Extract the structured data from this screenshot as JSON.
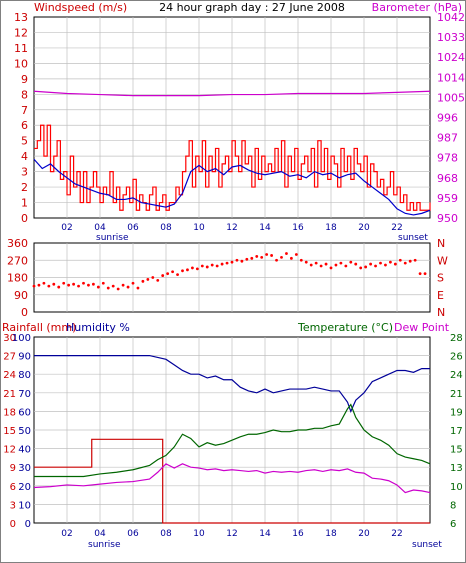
{
  "title": "24 hour graph day : 27 June 2008",
  "colors": {
    "frame": "#000000",
    "grid": "#c0c0c0",
    "wind": "#ff0000",
    "wind_avg": "#0000cc",
    "barometer": "#cc00cc",
    "direction": "#ff0000",
    "rain": "#cc0000",
    "humidity": "#000099",
    "temperature": "#006600",
    "dew_point": "#cc00cc",
    "left_axis": "#cc0000",
    "humidity_axis": "#000099",
    "right_axis_temp": "#006600"
  },
  "hour_ticks": [
    "02",
    "04",
    "06",
    "08",
    "10",
    "12",
    "14",
    "16",
    "18",
    "20",
    "22"
  ],
  "sunrise_label": "sunrise",
  "sunset_label": "sunset",
  "chart_data": [
    {
      "type": "line",
      "panel": "wind-barometer",
      "title": "24 hour graph day : 27 June 2008",
      "xlabel": "",
      "x_range_hours": [
        0,
        24
      ],
      "left_axis": {
        "label": "Windspeed (m/s)",
        "range": [
          0,
          13
        ],
        "ticks": [
          "0",
          "1",
          "2",
          "3",
          "4",
          "5",
          "6",
          "7",
          "8",
          "9",
          "10",
          "11",
          "12",
          "13"
        ]
      },
      "right_axis": {
        "label": "Barometer (hPa)",
        "range": [
          950,
          1042
        ],
        "ticks": [
          "950",
          "959",
          "968",
          "978",
          "987",
          "996",
          "1005",
          "1014",
          "1024",
          "1033",
          "1042"
        ]
      },
      "series": [
        {
          "name": "Windspeed (m/s)",
          "axis": "left",
          "x": [
            0.0,
            0.2,
            0.4,
            0.6,
            0.8,
            1.0,
            1.2,
            1.4,
            1.6,
            1.8,
            2.0,
            2.2,
            2.4,
            2.6,
            2.8,
            3.0,
            3.2,
            3.4,
            3.6,
            3.8,
            4.0,
            4.2,
            4.4,
            4.6,
            4.8,
            5.0,
            5.2,
            5.4,
            5.6,
            5.8,
            6.0,
            6.2,
            6.4,
            6.6,
            6.8,
            7.0,
            7.2,
            7.4,
            7.6,
            7.8,
            8.0,
            8.2,
            8.4,
            8.6,
            8.8,
            9.0,
            9.2,
            9.4,
            9.6,
            9.8,
            10.0,
            10.2,
            10.4,
            10.6,
            10.8,
            11.0,
            11.2,
            11.4,
            11.6,
            11.8,
            12.0,
            12.2,
            12.4,
            12.6,
            12.8,
            13.0,
            13.2,
            13.4,
            13.6,
            13.8,
            14.0,
            14.2,
            14.4,
            14.6,
            14.8,
            15.0,
            15.2,
            15.4,
            15.6,
            15.8,
            16.0,
            16.2,
            16.4,
            16.6,
            16.8,
            17.0,
            17.2,
            17.4,
            17.6,
            17.8,
            18.0,
            18.2,
            18.4,
            18.6,
            18.8,
            19.0,
            19.2,
            19.4,
            19.6,
            19.8,
            20.0,
            20.2,
            20.4,
            20.6,
            20.8,
            21.0,
            21.2,
            21.4,
            21.6,
            21.8,
            22.0,
            22.2,
            22.4,
            22.6,
            22.8,
            23.0,
            23.2,
            23.4,
            23.6,
            23.8,
            24.0
          ],
          "values": [
            4.5,
            5.0,
            6.0,
            4.0,
            6.0,
            3.0,
            4.0,
            5.0,
            2.5,
            3.0,
            1.5,
            4.0,
            2.0,
            3.0,
            1.0,
            3.0,
            1.0,
            2.0,
            3.0,
            2.0,
            1.0,
            2.0,
            1.5,
            3.0,
            1.0,
            2.0,
            0.5,
            1.5,
            2.0,
            1.0,
            2.5,
            0.5,
            1.5,
            1.0,
            0.5,
            1.5,
            2.0,
            0.5,
            1.0,
            1.5,
            0.5,
            1.0,
            1.0,
            2.0,
            1.5,
            3.0,
            4.0,
            5.0,
            2.0,
            4.0,
            3.0,
            5.0,
            2.0,
            4.0,
            3.0,
            4.5,
            2.0,
            3.5,
            4.0,
            3.0,
            5.0,
            4.0,
            3.0,
            5.0,
            3.5,
            4.0,
            2.0,
            4.5,
            2.5,
            4.0,
            3.0,
            3.5,
            3.0,
            4.5,
            3.0,
            5.0,
            2.0,
            4.0,
            3.0,
            4.5,
            2.5,
            3.5,
            4.0,
            3.0,
            4.5,
            2.0,
            5.0,
            3.0,
            4.5,
            2.5,
            4.0,
            3.5,
            2.0,
            4.5,
            3.0,
            4.0,
            2.5,
            4.5,
            3.5,
            3.0,
            4.0,
            2.0,
            3.5,
            3.0,
            2.0,
            2.5,
            1.5,
            2.0,
            3.0,
            1.5,
            2.0,
            1.0,
            1.5,
            0.5,
            1.0,
            0.5,
            1.0,
            0.5,
            0.5,
            0.5,
            1.0
          ]
        },
        {
          "name": "Average windspeed",
          "axis": "left",
          "x": [
            0,
            0.5,
            1,
            1.5,
            2,
            2.5,
            3,
            3.5,
            4,
            4.5,
            5,
            5.5,
            6,
            6.5,
            7,
            7.5,
            8,
            8.5,
            9,
            9.5,
            10,
            10.5,
            11,
            11.5,
            12,
            12.5,
            13,
            13.5,
            14,
            14.5,
            15,
            15.5,
            16,
            16.5,
            17,
            17.5,
            18,
            18.5,
            19,
            19.5,
            20,
            20.5,
            21,
            21.5,
            22,
            22.5,
            23,
            23.5,
            24
          ],
          "values": [
            3.8,
            3.2,
            3.5,
            3.0,
            2.6,
            2.2,
            2.0,
            1.8,
            1.6,
            1.5,
            1.2,
            1.2,
            1.3,
            1.0,
            0.9,
            0.8,
            0.7,
            0.9,
            1.6,
            3.0,
            3.4,
            3.0,
            3.2,
            2.8,
            3.3,
            3.4,
            3.1,
            2.9,
            2.8,
            2.9,
            3.0,
            2.7,
            2.8,
            2.6,
            3.0,
            2.8,
            2.9,
            2.6,
            2.8,
            2.9,
            2.4,
            2.0,
            1.6,
            1.2,
            0.6,
            0.3,
            0.2,
            0.3,
            0.5
          ]
        },
        {
          "name": "Barometer (hPa)",
          "axis": "right",
          "x": [
            0,
            2,
            4,
            6,
            8,
            10,
            12,
            14,
            16,
            18,
            20,
            22,
            24
          ],
          "values": [
            1008,
            1007,
            1006.5,
            1006,
            1006,
            1006,
            1006.5,
            1006.5,
            1007,
            1007,
            1007,
            1007.5,
            1008
          ]
        }
      ]
    },
    {
      "type": "scatter",
      "panel": "wind-direction",
      "x_range_hours": [
        0,
        24
      ],
      "left_axis": {
        "range": [
          0,
          360
        ],
        "ticks": [
          "0",
          "90",
          "180",
          "270",
          "360"
        ]
      },
      "right_axis": {
        "ticks": [
          "N",
          "E",
          "S",
          "W",
          "N"
        ]
      },
      "series": [
        {
          "name": "Wind direction",
          "x": [
            0.0,
            0.3,
            0.6,
            0.9,
            1.2,
            1.5,
            1.8,
            2.1,
            2.4,
            2.7,
            3.0,
            3.3,
            3.6,
            3.9,
            4.2,
            4.5,
            4.8,
            5.1,
            5.4,
            5.7,
            6.0,
            6.3,
            6.6,
            6.9,
            7.2,
            7.5,
            7.8,
            8.1,
            8.4,
            8.7,
            9.0,
            9.3,
            9.6,
            9.9,
            10.2,
            10.5,
            10.8,
            11.1,
            11.4,
            11.7,
            12.0,
            12.3,
            12.6,
            12.9,
            13.2,
            13.5,
            13.8,
            14.1,
            14.4,
            14.7,
            15.0,
            15.3,
            15.6,
            15.9,
            16.2,
            16.5,
            16.8,
            17.1,
            17.4,
            17.7,
            18.0,
            18.3,
            18.6,
            18.9,
            19.2,
            19.5,
            19.8,
            20.1,
            20.4,
            20.7,
            21.0,
            21.3,
            21.6,
            21.9,
            22.2,
            22.5,
            22.8,
            23.1,
            23.4,
            23.7
          ],
          "values": [
            135,
            140,
            150,
            135,
            145,
            130,
            150,
            140,
            145,
            135,
            150,
            140,
            145,
            130,
            150,
            125,
            135,
            120,
            140,
            130,
            150,
            125,
            160,
            170,
            180,
            165,
            190,
            200,
            210,
            195,
            215,
            220,
            230,
            225,
            240,
            235,
            245,
            240,
            250,
            255,
            260,
            270,
            265,
            275,
            280,
            290,
            285,
            300,
            295,
            270,
            285,
            305,
            280,
            300,
            270,
            260,
            245,
            255,
            240,
            250,
            230,
            245,
            255,
            240,
            260,
            250,
            230,
            235,
            250,
            240,
            255,
            245,
            260,
            250,
            270,
            255,
            265,
            270,
            200,
            200
          ]
        }
      ]
    },
    {
      "type": "line",
      "panel": "rain-humidity-temperature",
      "x_range_hours": [
        0,
        24
      ],
      "left_axis_rain": {
        "label": "Rainfall (mm)",
        "range": [
          0,
          30
        ],
        "ticks": [
          "0",
          "3",
          "6",
          "9",
          "12",
          "15",
          "18",
          "21",
          "24",
          "27",
          "30"
        ]
      },
      "left_axis_humidity": {
        "label": "Humidity %",
        "range": [
          0,
          100
        ],
        "ticks": [
          "0",
          "10",
          "20",
          "30",
          "40",
          "50",
          "60",
          "70",
          "80",
          "90",
          "100"
        ]
      },
      "right_axis": {
        "label_temperature": "Temperature (°C)",
        "label_dew_point": "Dew Point",
        "range": [
          6,
          28
        ],
        "ticks": [
          "6",
          "8",
          "10",
          "13",
          "15",
          "17",
          "19",
          "21",
          "24",
          "26",
          "28"
        ]
      },
      "series": [
        {
          "name": "Rainfall (mm)",
          "axis": "rain",
          "x": [
            0,
            0.5,
            1,
            1.5,
            2,
            2.5,
            3,
            3.4,
            3.5,
            4,
            5,
            6,
            7,
            7.6,
            7.7,
            7.8,
            8,
            10,
            12,
            14,
            16,
            18,
            20,
            22,
            24
          ],
          "values": [
            9,
            9,
            9,
            9,
            9,
            9,
            9,
            9,
            13.5,
            13.5,
            13.5,
            13.5,
            13.5,
            13.5,
            13.5,
            0,
            0,
            0,
            0,
            0,
            0,
            0,
            0,
            0,
            0
          ]
        },
        {
          "name": "Humidity %",
          "axis": "humidity",
          "x": [
            0,
            1,
            2,
            3,
            4,
            5,
            6,
            7,
            7.5,
            8,
            8.5,
            9,
            9.5,
            10,
            10.5,
            11,
            11.5,
            12,
            12.5,
            13,
            13.5,
            14,
            14.5,
            15,
            15.5,
            16,
            16.5,
            17,
            17.5,
            18,
            18.5,
            19,
            19.2,
            19.5,
            20,
            20.5,
            21,
            21.5,
            22,
            22.5,
            23,
            23.5,
            24
          ],
          "values": [
            90,
            90,
            90,
            90,
            90,
            90,
            90,
            90,
            89,
            88,
            85,
            82,
            80,
            80,
            78,
            79,
            77,
            77,
            73,
            71,
            70,
            72,
            70,
            71,
            72,
            72,
            72,
            73,
            72,
            71,
            71,
            65,
            60,
            66,
            70,
            76,
            78,
            80,
            82,
            82,
            81,
            83,
            83
          ]
        },
        {
          "name": "Temperature (°C)",
          "axis": "right",
          "x": [
            0,
            1,
            2,
            3,
            4,
            5,
            6,
            7,
            7.5,
            8,
            8.5,
            9,
            9.5,
            10,
            10.5,
            11,
            11.5,
            12,
            12.5,
            13,
            13.5,
            14,
            14.5,
            15,
            15.5,
            16,
            16.5,
            17,
            17.5,
            18,
            18.5,
            19,
            19.2,
            19.5,
            20,
            20.5,
            21,
            21.5,
            22,
            22.5,
            23,
            23.5,
            24
          ],
          "values": [
            11.5,
            11.5,
            11.5,
            11.5,
            11.8,
            12,
            12.3,
            12.8,
            13.5,
            14,
            15,
            16.5,
            16,
            15,
            15.5,
            15.2,
            15.4,
            15.8,
            16.2,
            16.5,
            16.5,
            16.7,
            17,
            16.8,
            16.8,
            17,
            17,
            17.2,
            17.2,
            17.5,
            17.7,
            19.5,
            20,
            18.5,
            17,
            16.2,
            15.8,
            15.2,
            14.2,
            13.8,
            13.6,
            13.4,
            13
          ]
        },
        {
          "name": "Dew Point",
          "axis": "right",
          "x": [
            0,
            1,
            2,
            3,
            4,
            5,
            6,
            7,
            7.5,
            8,
            8.5,
            9,
            9.5,
            10,
            10.5,
            11,
            11.5,
            12,
            12.5,
            13,
            13.5,
            14,
            14.5,
            15,
            15.5,
            16,
            16.5,
            17,
            17.5,
            18,
            18.5,
            19,
            19.5,
            20,
            20.5,
            21,
            21.5,
            22,
            22.5,
            23,
            23.5,
            24
          ],
          "values": [
            10.2,
            10.3,
            10.5,
            10.4,
            10.6,
            10.8,
            10.9,
            11.2,
            12,
            13,
            12.5,
            13,
            12.6,
            12.5,
            12.3,
            12.4,
            12.2,
            12.3,
            12.2,
            12.1,
            12.2,
            11.9,
            12.1,
            12.0,
            12.1,
            12.0,
            12.2,
            12.3,
            12.1,
            12.3,
            12.2,
            12.4,
            12.0,
            11.9,
            11.3,
            11.2,
            11.0,
            10.5,
            9.6,
            9.9,
            9.8,
            9.6
          ]
        }
      ]
    }
  ]
}
